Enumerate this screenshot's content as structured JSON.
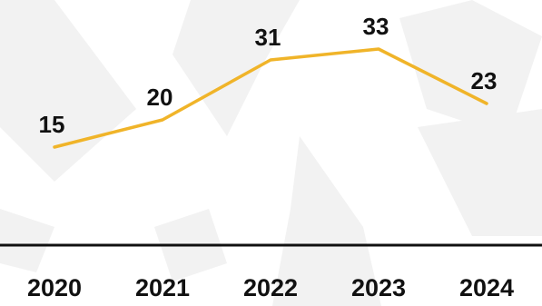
{
  "chart_data": {
    "type": "line",
    "categories": [
      "2020",
      "2021",
      "2022",
      "2023",
      "2024"
    ],
    "values": [
      15,
      20,
      31,
      33,
      23
    ],
    "data_labels": [
      "15",
      "20",
      "31",
      "33",
      "23"
    ],
    "title": "",
    "xlabel": "",
    "ylabel": "",
    "ylim": [
      0,
      40
    ],
    "grid": false,
    "legend": "none"
  },
  "colors": {
    "line": "#f0b429",
    "axis": "#111111",
    "text": "#111111",
    "background": "#ffffff",
    "background_shapes": "#f2f2f2"
  }
}
